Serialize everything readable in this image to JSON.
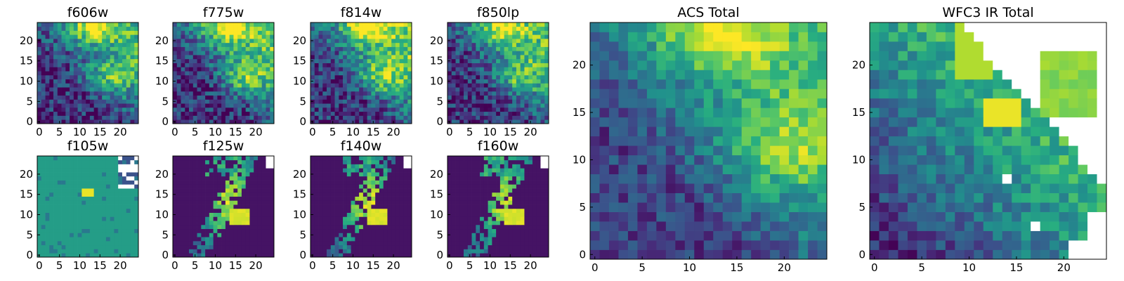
{
  "figure": {
    "colormap": "viridis",
    "colormap_stops": [
      "#440154",
      "#472d7b",
      "#3b528b",
      "#2c728e",
      "#21918c",
      "#28ae80",
      "#5ec962",
      "#addc30",
      "#fde725"
    ],
    "background": "#ffffff",
    "masked_color": "#ffffff"
  },
  "chart_data": [
    {
      "id": "f606w",
      "type": "heatmap",
      "title": "f606w",
      "x_ticks": [
        0,
        5,
        10,
        15,
        20
      ],
      "y_ticks": [
        0,
        5,
        10,
        15,
        20
      ],
      "xlim": [
        -0.5,
        24.5
      ],
      "ylim": [
        -0.5,
        24.5
      ],
      "grid": false,
      "pattern": "acs_band",
      "seed": 11,
      "peak_scale": 0.95
    },
    {
      "id": "f775w",
      "type": "heatmap",
      "title": "f775w",
      "x_ticks": [
        0,
        5,
        10,
        15,
        20
      ],
      "y_ticks": [
        0,
        5,
        10,
        15,
        20
      ],
      "xlim": [
        -0.5,
        24.5
      ],
      "ylim": [
        -0.5,
        24.5
      ],
      "grid": false,
      "pattern": "acs_band",
      "seed": 23,
      "peak_scale": 1.05
    },
    {
      "id": "f814w",
      "type": "heatmap",
      "title": "f814w",
      "x_ticks": [
        0,
        5,
        10,
        15,
        20
      ],
      "y_ticks": [
        0,
        5,
        10,
        15,
        20
      ],
      "xlim": [
        -0.5,
        24.5
      ],
      "ylim": [
        -0.5,
        24.5
      ],
      "grid": false,
      "pattern": "acs_band",
      "seed": 37,
      "peak_scale": 1.1
    },
    {
      "id": "f850lp",
      "type": "heatmap",
      "title": "f850lp",
      "x_ticks": [
        0,
        5,
        10,
        15,
        20
      ],
      "y_ticks": [
        0,
        5,
        10,
        15,
        20
      ],
      "xlim": [
        -0.5,
        24.5
      ],
      "ylim": [
        -0.5,
        24.5
      ],
      "grid": false,
      "pattern": "acs_band",
      "seed": 41,
      "peak_scale": 1.0
    },
    {
      "id": "acs_total",
      "type": "heatmap",
      "title": "ACS Total",
      "x_ticks": [
        0,
        5,
        10,
        15,
        20
      ],
      "y_ticks": [
        0,
        5,
        10,
        15,
        20
      ],
      "xlim": [
        -0.5,
        24.5
      ],
      "ylim": [
        -0.5,
        24.5
      ],
      "grid": false,
      "pattern": "acs_total",
      "seed": 53,
      "peak_scale": 1.0
    },
    {
      "id": "wfc3_ir_total",
      "type": "heatmap",
      "title": "WFC3 IR Total",
      "x_ticks": [
        0,
        5,
        10,
        15,
        20
      ],
      "y_ticks": [
        0,
        5,
        10,
        15,
        20
      ],
      "xlim": [
        -0.5,
        24.5
      ],
      "ylim": [
        -0.5,
        24.5
      ],
      "grid": false,
      "pattern": "ir_total",
      "seed": 67,
      "peak_scale": 1.0
    },
    {
      "id": "f105w",
      "type": "heatmap",
      "title": "f105w",
      "x_ticks": [
        0,
        5,
        10,
        15,
        20
      ],
      "y_ticks": [
        0,
        5,
        10,
        15,
        20
      ],
      "xlim": [
        -0.5,
        24.5
      ],
      "ylim": [
        -0.5,
        24.5
      ],
      "grid": false,
      "pattern": "ir_flat",
      "seed": 71,
      "peak_scale": 1.0
    },
    {
      "id": "f125w",
      "type": "heatmap",
      "title": "f125w",
      "x_ticks": [
        0,
        5,
        10,
        15,
        20
      ],
      "y_ticks": [
        0,
        5,
        10,
        15,
        20
      ],
      "xlim": [
        -0.5,
        24.5
      ],
      "ylim": [
        -0.5,
        24.5
      ],
      "grid": false,
      "pattern": "ir_band",
      "seed": 83,
      "peak_scale": 1.0
    },
    {
      "id": "f140w",
      "type": "heatmap",
      "title": "f140w",
      "x_ticks": [
        0,
        5,
        10,
        15,
        20
      ],
      "y_ticks": [
        0,
        5,
        10,
        15,
        20
      ],
      "xlim": [
        -0.5,
        24.5
      ],
      "ylim": [
        -0.5,
        24.5
      ],
      "grid": false,
      "pattern": "ir_band",
      "seed": 97,
      "peak_scale": 1.0
    },
    {
      "id": "f160w",
      "type": "heatmap",
      "title": "f160w",
      "x_ticks": [
        0,
        5,
        10,
        15,
        20
      ],
      "y_ticks": [
        0,
        5,
        10,
        15,
        20
      ],
      "xlim": [
        -0.5,
        24.5
      ],
      "ylim": [
        -0.5,
        24.5
      ],
      "grid": false,
      "pattern": "ir_band",
      "seed": 101,
      "peak_scale": 1.0
    }
  ]
}
